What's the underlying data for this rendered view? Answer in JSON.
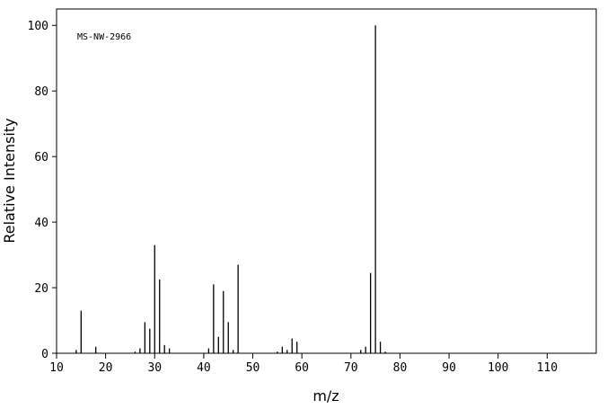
{
  "chart_data": {
    "type": "bar",
    "annotation": "MS-NW-2966",
    "x_label": "m/z",
    "y_label": "Relative Intensity",
    "x": [
      14,
      15,
      18,
      26,
      27,
      28,
      29,
      30,
      31,
      32,
      33,
      41,
      42,
      43,
      44,
      45,
      46,
      47,
      55,
      56,
      57,
      58,
      59,
      72,
      73,
      74,
      75,
      76,
      77
    ],
    "values": [
      1,
      13,
      2,
      0.5,
      1.5,
      9.5,
      7.5,
      33,
      22.5,
      2.5,
      1.5,
      1.5,
      21,
      5,
      19,
      9.5,
      1,
      27,
      0.5,
      2,
      1,
      4.5,
      3.5,
      1,
      2,
      24.5,
      100,
      3.5,
      0.5
    ],
    "color": "#000000",
    "xlim": [
      10,
      120
    ],
    "ylim": [
      0,
      105
    ],
    "xticks": [
      10,
      20,
      30,
      40,
      50,
      60,
      70,
      80,
      90,
      100,
      110
    ],
    "yticks": [
      0,
      20,
      40,
      60,
      80,
      100
    ]
  }
}
